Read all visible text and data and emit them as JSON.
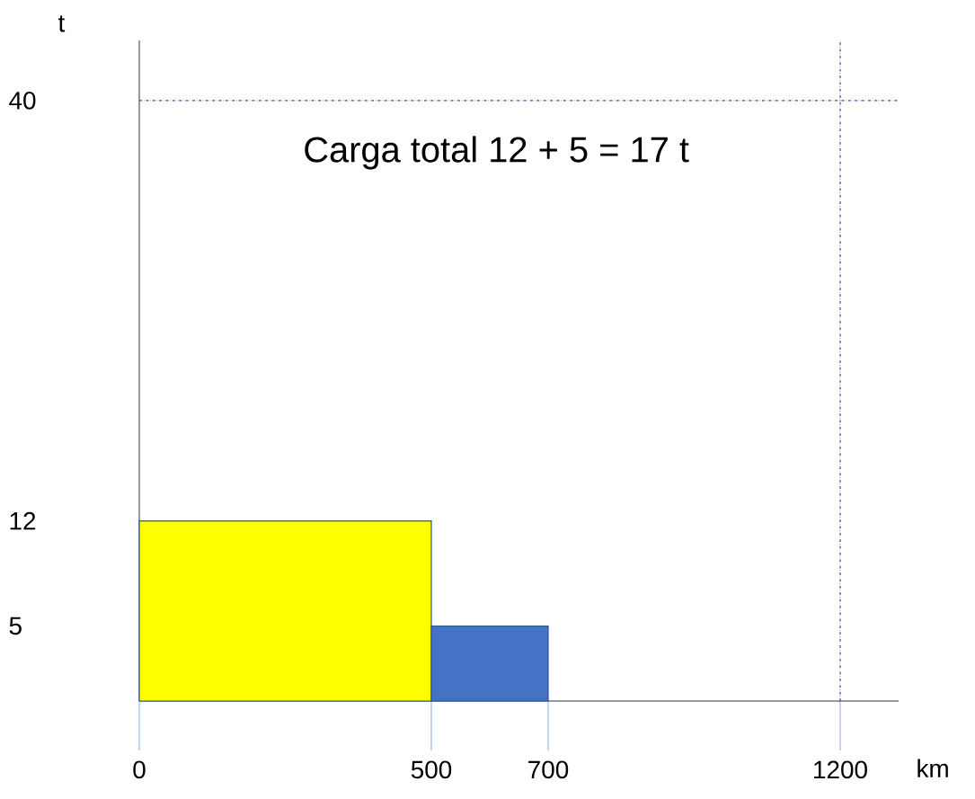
{
  "chart_data": {
    "type": "histogram",
    "annotations": [
      "Carga total 12 + 5 = 17 t"
    ],
    "xlabel": "km",
    "ylabel": "t",
    "bins": [
      0,
      500,
      700
    ],
    "values": [
      12,
      5
    ],
    "colors": [
      "#ffff00",
      "#4472c4"
    ],
    "xlim": [
      0,
      1300
    ],
    "ylim": [
      0,
      44
    ],
    "xticks": [
      0,
      500,
      700,
      1200
    ],
    "yticks": [
      5,
      12,
      40
    ],
    "ref_lines": [
      {
        "axis": "y",
        "value": 40,
        "color": "#2f5597",
        "line_style": "dashed"
      },
      {
        "axis": "x",
        "value": 1200,
        "color": "#2f5597",
        "line_style": "dashed"
      }
    ],
    "grid": false
  }
}
